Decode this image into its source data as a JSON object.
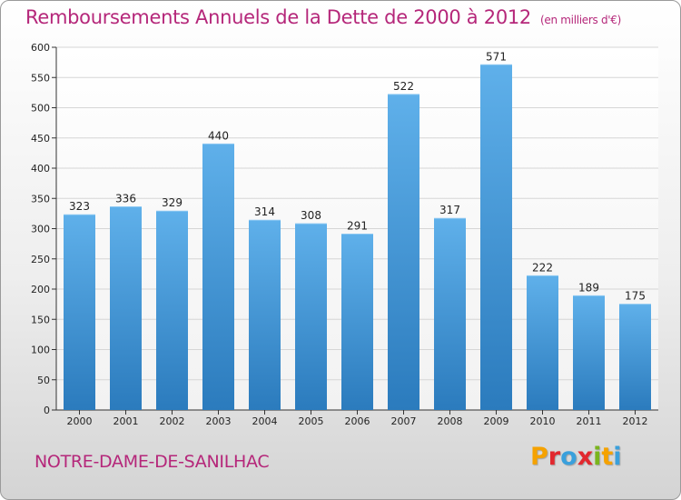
{
  "header": {
    "title": "Remboursements Annuels de la Dette de 2000 à 2012",
    "unit": "(en milliers d'€)"
  },
  "footer": {
    "commune": "NOTRE-DAME-DE-SANILHAC",
    "logo_letters": [
      "P",
      "r",
      "o",
      "x",
      "i",
      "t",
      "i"
    ],
    "logo_colors": [
      "#f5a200",
      "#e2282e",
      "#3aa0dc",
      "#e2282e",
      "#7ab51d",
      "#f5a200",
      "#3aa0dc"
    ]
  },
  "colors": {
    "bar_top": "#5fb0ea",
    "bar_bottom": "#2b7bbd",
    "title": "#b5277a",
    "grid": "#d6d6d6"
  },
  "chart_data": {
    "type": "bar",
    "title": "Remboursements Annuels de la Dette de 2000 à 2012",
    "subtitle": "(en milliers d'€)",
    "categories": [
      "2000",
      "2001",
      "2002",
      "2003",
      "2004",
      "2005",
      "2006",
      "2007",
      "2008",
      "2009",
      "2010",
      "2011",
      "2012"
    ],
    "values": [
      323,
      336,
      329,
      440,
      314,
      308,
      291,
      522,
      317,
      571,
      222,
      189,
      175
    ],
    "ylim": [
      0,
      600
    ],
    "yticks": [
      0,
      50,
      100,
      150,
      200,
      250,
      300,
      350,
      400,
      450,
      500,
      550,
      600
    ],
    "grid": true,
    "xlabel": "",
    "ylabel": ""
  }
}
